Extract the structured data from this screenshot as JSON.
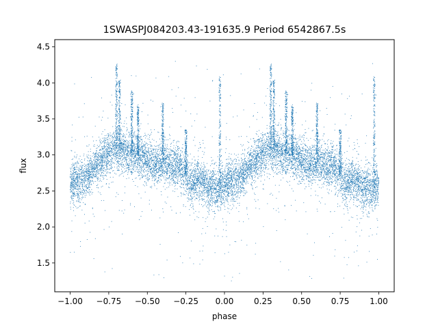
{
  "chart_data": {
    "type": "scatter",
    "title": "1SWASPJ084203.43-191635.9 Period 6542867.5s",
    "xlabel": "phase",
    "ylabel": "flux",
    "xlim": [
      -1.1,
      1.1
    ],
    "ylim": [
      1.1,
      4.6
    ],
    "xticks": [
      -1.0,
      -0.75,
      -0.5,
      -0.25,
      0.0,
      0.25,
      0.5,
      0.75,
      1.0
    ],
    "xtick_labels": [
      "−1.00",
      "−0.75",
      "−0.50",
      "−0.25",
      "0.00",
      "0.25",
      "0.50",
      "0.75",
      "1.00"
    ],
    "yticks": [
      1.5,
      2.0,
      2.5,
      3.0,
      3.5,
      4.0,
      4.5
    ],
    "ytick_labels": [
      "1.5",
      "2.0",
      "2.5",
      "3.0",
      "3.5",
      "4.0",
      "4.5"
    ],
    "grid": false,
    "series": [
      {
        "color": "#1f77b4",
        "x_range": [
          -1.0,
          1.0
        ],
        "period_in_phase": 1.0,
        "profile": {
          "phase": [
            0.0,
            0.03,
            0.06,
            0.1,
            0.15,
            0.2,
            0.24,
            0.27,
            0.3,
            0.33,
            0.38,
            0.45,
            0.5,
            0.55,
            0.6,
            0.65,
            0.7,
            0.74,
            0.78,
            0.82,
            0.86,
            0.9,
            0.95,
            1.0
          ],
          "median_flux": [
            2.6,
            2.62,
            2.63,
            2.68,
            2.8,
            2.95,
            3.0,
            3.05,
            3.1,
            3.05,
            3.02,
            2.98,
            2.95,
            2.85,
            2.9,
            2.88,
            2.85,
            2.75,
            2.6,
            2.65,
            2.62,
            2.55,
            2.5,
            2.6
          ],
          "scatter_sigma": 0.14
        },
        "flare_events": [
          {
            "phase": 0.3,
            "peak_flux": 4.27
          },
          {
            "phase": 0.32,
            "peak_flux": 4.05
          },
          {
            "phase": 0.4,
            "peak_flux": 3.9
          },
          {
            "phase": 0.44,
            "peak_flux": 3.7
          },
          {
            "phase": 0.6,
            "peak_flux": 3.72
          },
          {
            "phase": 0.75,
            "peak_flux": 3.35
          },
          {
            "phase": 0.97,
            "peak_flux": 4.1
          }
        ],
        "flux_min": 1.25,
        "flux_max": 4.3
      }
    ]
  }
}
